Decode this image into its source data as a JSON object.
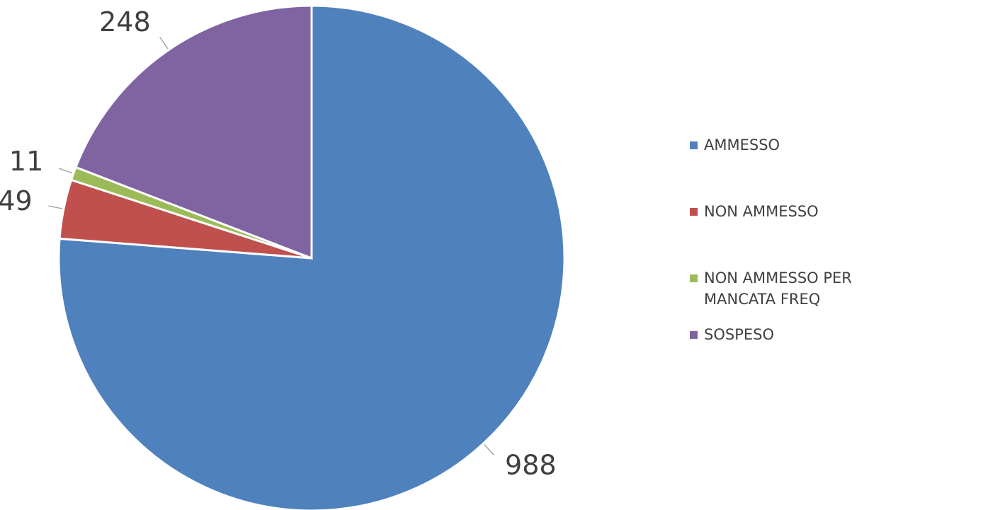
{
  "chart_data": {
    "type": "pie",
    "categories": [
      "AMMESSO",
      "NON AMMESSO",
      "NON AMMESSO PER MANCATA FREQ",
      "SOSPESO"
    ],
    "values": [
      988,
      49,
      11,
      248
    ],
    "colors": [
      "#4f81bd",
      "#c0504d",
      "#9bbb59",
      "#8064a2"
    ],
    "legend": "right"
  }
}
